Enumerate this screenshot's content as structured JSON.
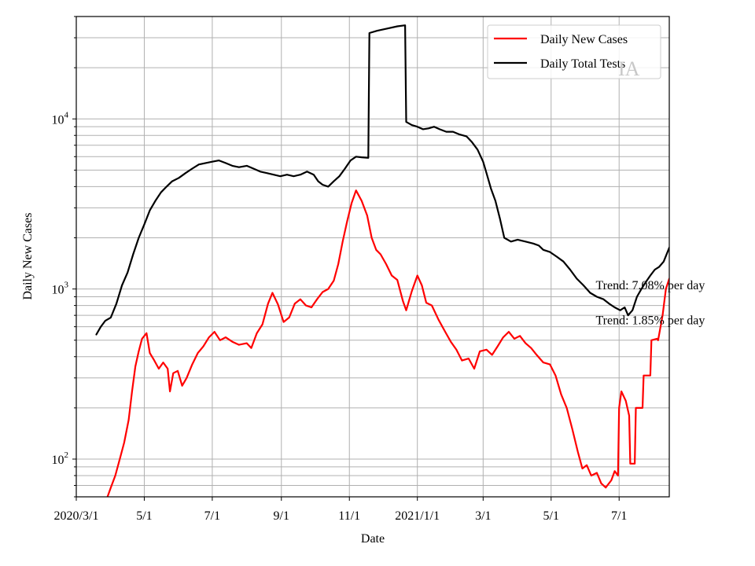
{
  "chart_data": {
    "type": "line",
    "title": "",
    "xlabel": "Date",
    "ylabel": "Daily New Cases",
    "yscale": "log",
    "ylim": [
      60,
      40000
    ],
    "xlim": [
      "2020-03-01",
      "2021-08-15"
    ],
    "grid": true,
    "legend_position": "top-right",
    "watermark": "IA",
    "x_ticks": [
      {
        "date": "2020-03-01",
        "label": "2020/3/1"
      },
      {
        "date": "2020-05-01",
        "label": "5/1"
      },
      {
        "date": "2020-07-01",
        "label": "7/1"
      },
      {
        "date": "2020-09-01",
        "label": "9/1"
      },
      {
        "date": "2020-11-01",
        "label": "11/1"
      },
      {
        "date": "2021-01-01",
        "label": "2021/1/1"
      },
      {
        "date": "2021-03-01",
        "label": "3/1"
      },
      {
        "date": "2021-05-01",
        "label": "5/1"
      },
      {
        "date": "2021-07-01",
        "label": "7/1"
      }
    ],
    "y_ticks": [
      {
        "value": 100,
        "base": "10",
        "exp": "2"
      },
      {
        "value": 1000,
        "base": "10",
        "exp": "3"
      },
      {
        "value": 10000,
        "base": "10",
        "exp": "4"
      }
    ],
    "annotations": [
      {
        "text": "Trend: 7.08% per day",
        "date": "2021-06-10",
        "value": 1060
      },
      {
        "text": "Trend: 1.85% per day",
        "date": "2021-06-10",
        "value": 660
      }
    ],
    "series": [
      {
        "name": "Daily New Cases",
        "color": "#ff0000",
        "points": [
          [
            "2020-03-29",
            60
          ],
          [
            "2020-04-01",
            68
          ],
          [
            "2020-04-05",
            80
          ],
          [
            "2020-04-09",
            100
          ],
          [
            "2020-04-13",
            125
          ],
          [
            "2020-04-17",
            170
          ],
          [
            "2020-04-20",
            250
          ],
          [
            "2020-04-23",
            350
          ],
          [
            "2020-04-26",
            430
          ],
          [
            "2020-04-29",
            510
          ],
          [
            "2020-05-03",
            550
          ],
          [
            "2020-05-06",
            420
          ],
          [
            "2020-05-10",
            380
          ],
          [
            "2020-05-14",
            340
          ],
          [
            "2020-05-18",
            370
          ],
          [
            "2020-05-22",
            340
          ],
          [
            "2020-05-24",
            250
          ],
          [
            "2020-05-27",
            320
          ],
          [
            "2020-05-31",
            330
          ],
          [
            "2020-06-04",
            270
          ],
          [
            "2020-06-08",
            300
          ],
          [
            "2020-06-13",
            360
          ],
          [
            "2020-06-18",
            420
          ],
          [
            "2020-06-23",
            460
          ],
          [
            "2020-06-28",
            520
          ],
          [
            "2020-07-03",
            560
          ],
          [
            "2020-07-08",
            500
          ],
          [
            "2020-07-13",
            520
          ],
          [
            "2020-07-19",
            490
          ],
          [
            "2020-07-25",
            470
          ],
          [
            "2020-08-01",
            480
          ],
          [
            "2020-08-05",
            450
          ],
          [
            "2020-08-10",
            550
          ],
          [
            "2020-08-15",
            620
          ],
          [
            "2020-08-20",
            820
          ],
          [
            "2020-08-24",
            950
          ],
          [
            "2020-08-29",
            810
          ],
          [
            "2020-09-03",
            640
          ],
          [
            "2020-09-08",
            680
          ],
          [
            "2020-09-13",
            820
          ],
          [
            "2020-09-18",
            870
          ],
          [
            "2020-09-23",
            800
          ],
          [
            "2020-09-28",
            780
          ],
          [
            "2020-10-03",
            870
          ],
          [
            "2020-10-08",
            960
          ],
          [
            "2020-10-13",
            1000
          ],
          [
            "2020-10-18",
            1120
          ],
          [
            "2020-10-22",
            1400
          ],
          [
            "2020-10-26",
            1900
          ],
          [
            "2020-10-30",
            2500
          ],
          [
            "2020-11-03",
            3200
          ],
          [
            "2020-11-07",
            3800
          ],
          [
            "2020-11-12",
            3300
          ],
          [
            "2020-11-17",
            2700
          ],
          [
            "2020-11-21",
            2000
          ],
          [
            "2020-11-25",
            1700
          ],
          [
            "2020-11-29",
            1600
          ],
          [
            "2020-12-04",
            1400
          ],
          [
            "2020-12-09",
            1200
          ],
          [
            "2020-12-14",
            1130
          ],
          [
            "2020-12-19",
            850
          ],
          [
            "2020-12-22",
            750
          ],
          [
            "2020-12-27",
            970
          ],
          [
            "2021-01-01",
            1200
          ],
          [
            "2021-01-05",
            1050
          ],
          [
            "2021-01-09",
            830
          ],
          [
            "2021-01-14",
            800
          ],
          [
            "2021-01-20",
            660
          ],
          [
            "2021-01-26",
            560
          ],
          [
            "2021-01-31",
            490
          ],
          [
            "2021-02-05",
            440
          ],
          [
            "2021-02-10",
            380
          ],
          [
            "2021-02-16",
            390
          ],
          [
            "2021-02-21",
            340
          ],
          [
            "2021-02-26",
            430
          ],
          [
            "2021-03-04",
            440
          ],
          [
            "2021-03-09",
            410
          ],
          [
            "2021-03-14",
            460
          ],
          [
            "2021-03-19",
            520
          ],
          [
            "2021-03-24",
            560
          ],
          [
            "2021-03-29",
            510
          ],
          [
            "2021-04-03",
            530
          ],
          [
            "2021-04-08",
            480
          ],
          [
            "2021-04-13",
            450
          ],
          [
            "2021-04-18",
            410
          ],
          [
            "2021-04-24",
            370
          ],
          [
            "2021-04-30",
            360
          ],
          [
            "2021-05-05",
            310
          ],
          [
            "2021-05-10",
            240
          ],
          [
            "2021-05-15",
            200
          ],
          [
            "2021-05-20",
            150
          ],
          [
            "2021-05-25",
            110
          ],
          [
            "2021-05-29",
            88
          ],
          [
            "2021-06-02",
            92
          ],
          [
            "2021-06-06",
            80
          ],
          [
            "2021-06-11",
            83
          ],
          [
            "2021-06-15",
            72
          ],
          [
            "2021-06-19",
            68
          ],
          [
            "2021-06-24",
            75
          ],
          [
            "2021-06-27",
            85
          ],
          [
            "2021-06-30",
            80
          ],
          [
            "2021-07-01",
            200
          ],
          [
            "2021-07-03",
            250
          ],
          [
            "2021-07-07",
            220
          ],
          [
            "2021-07-10",
            180
          ],
          [
            "2021-07-11",
            94
          ],
          [
            "2021-07-15",
            94
          ],
          [
            "2021-07-16",
            200
          ],
          [
            "2021-07-22",
            200
          ],
          [
            "2021-07-23",
            310
          ],
          [
            "2021-07-29",
            310
          ],
          [
            "2021-07-30",
            500
          ],
          [
            "2021-08-04",
            510
          ],
          [
            "2021-08-05",
            500
          ],
          [
            "2021-08-09",
            700
          ],
          [
            "2021-08-12",
            1000
          ],
          [
            "2021-08-15",
            1150
          ]
        ]
      },
      {
        "name": "Daily Total Tests",
        "color": "#000000",
        "points": [
          [
            "2020-03-19",
            540
          ],
          [
            "2020-03-23",
            600
          ],
          [
            "2020-03-27",
            650
          ],
          [
            "2020-04-01",
            680
          ],
          [
            "2020-04-06",
            820
          ],
          [
            "2020-04-11",
            1050
          ],
          [
            "2020-04-16",
            1250
          ],
          [
            "2020-04-21",
            1600
          ],
          [
            "2020-04-26",
            2000
          ],
          [
            "2020-05-01",
            2400
          ],
          [
            "2020-05-06",
            2900
          ],
          [
            "2020-05-11",
            3300
          ],
          [
            "2020-05-16",
            3700
          ],
          [
            "2020-05-21",
            4000
          ],
          [
            "2020-05-26",
            4300
          ],
          [
            "2020-06-01",
            4500
          ],
          [
            "2020-06-07",
            4800
          ],
          [
            "2020-06-13",
            5100
          ],
          [
            "2020-06-19",
            5400
          ],
          [
            "2020-06-25",
            5500
          ],
          [
            "2020-07-01",
            5600
          ],
          [
            "2020-07-07",
            5700
          ],
          [
            "2020-07-13",
            5500
          ],
          [
            "2020-07-19",
            5300
          ],
          [
            "2020-07-25",
            5200
          ],
          [
            "2020-08-01",
            5300
          ],
          [
            "2020-08-07",
            5100
          ],
          [
            "2020-08-13",
            4900
          ],
          [
            "2020-08-19",
            4800
          ],
          [
            "2020-08-25",
            4700
          ],
          [
            "2020-08-31",
            4600
          ],
          [
            "2020-09-06",
            4700
          ],
          [
            "2020-09-12",
            4600
          ],
          [
            "2020-09-18",
            4700
          ],
          [
            "2020-09-24",
            4900
          ],
          [
            "2020-09-30",
            4700
          ],
          [
            "2020-10-04",
            4300
          ],
          [
            "2020-10-08",
            4100
          ],
          [
            "2020-10-13",
            4000
          ],
          [
            "2020-10-18",
            4300
          ],
          [
            "2020-10-23",
            4600
          ],
          [
            "2020-10-28",
            5100
          ],
          [
            "2020-11-02",
            5700
          ],
          [
            "2020-11-07",
            6000
          ],
          [
            "2020-11-12",
            5950
          ],
          [
            "2020-11-18",
            5900
          ],
          [
            "2020-11-19",
            32000
          ],
          [
            "2020-11-26",
            33000
          ],
          [
            "2020-12-05",
            34000
          ],
          [
            "2020-12-14",
            35000
          ],
          [
            "2020-12-21",
            35500
          ],
          [
            "2020-12-22",
            9600
          ],
          [
            "2020-12-27",
            9200
          ],
          [
            "2021-01-01",
            9000
          ],
          [
            "2021-01-06",
            8700
          ],
          [
            "2021-01-11",
            8800
          ],
          [
            "2021-01-16",
            9000
          ],
          [
            "2021-01-21",
            8700
          ],
          [
            "2021-01-27",
            8400
          ],
          [
            "2021-02-02",
            8400
          ],
          [
            "2021-02-08",
            8100
          ],
          [
            "2021-02-14",
            7900
          ],
          [
            "2021-02-19",
            7300
          ],
          [
            "2021-02-24",
            6600
          ],
          [
            "2021-03-01",
            5600
          ],
          [
            "2021-03-04",
            4800
          ],
          [
            "2021-03-08",
            3900
          ],
          [
            "2021-03-12",
            3300
          ],
          [
            "2021-03-16",
            2600
          ],
          [
            "2021-03-20",
            2000
          ],
          [
            "2021-03-26",
            1900
          ],
          [
            "2021-04-01",
            1950
          ],
          [
            "2021-04-08",
            1900
          ],
          [
            "2021-04-15",
            1850
          ],
          [
            "2021-04-20",
            1800
          ],
          [
            "2021-04-24",
            1700
          ],
          [
            "2021-04-30",
            1650
          ],
          [
            "2021-05-06",
            1550
          ],
          [
            "2021-05-12",
            1450
          ],
          [
            "2021-05-18",
            1300
          ],
          [
            "2021-05-24",
            1150
          ],
          [
            "2021-05-30",
            1050
          ],
          [
            "2021-06-05",
            950
          ],
          [
            "2021-06-11",
            900
          ],
          [
            "2021-06-17",
            870
          ],
          [
            "2021-06-22",
            820
          ],
          [
            "2021-06-27",
            780
          ],
          [
            "2021-07-02",
            750
          ],
          [
            "2021-07-06",
            780
          ],
          [
            "2021-07-09",
            700
          ],
          [
            "2021-07-13",
            750
          ],
          [
            "2021-07-17",
            900
          ],
          [
            "2021-07-21",
            1000
          ],
          [
            "2021-07-25",
            1100
          ],
          [
            "2021-07-29",
            1200
          ],
          [
            "2021-08-02",
            1300
          ],
          [
            "2021-08-06",
            1350
          ],
          [
            "2021-08-10",
            1450
          ],
          [
            "2021-08-15",
            1750
          ]
        ]
      }
    ]
  }
}
